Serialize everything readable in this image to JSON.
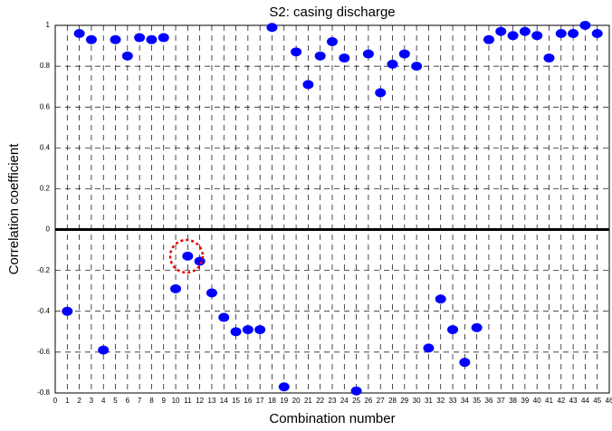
{
  "chart_data": {
    "type": "scatter",
    "title": "S2: casing discharge",
    "xlabel": "Combination number",
    "ylabel": "Correlation coefficient",
    "x": [
      1,
      2,
      3,
      4,
      5,
      6,
      7,
      8,
      9,
      10,
      11,
      12,
      13,
      14,
      15,
      16,
      17,
      18,
      19,
      20,
      21,
      22,
      23,
      24,
      25,
      26,
      27,
      28,
      29,
      30,
      31,
      32,
      33,
      34,
      35,
      36,
      37,
      38,
      39,
      40,
      41,
      42,
      43,
      44,
      45
    ],
    "values": [
      -0.4,
      0.96,
      0.93,
      -0.59,
      0.93,
      0.85,
      0.94,
      0.93,
      0.94,
      -0.29,
      -0.13,
      -0.155,
      -0.31,
      -0.43,
      -0.5,
      -0.49,
      -0.49,
      0.99,
      -0.77,
      0.87,
      0.71,
      0.85,
      0.92,
      0.84,
      -0.79,
      0.86,
      0.67,
      0.81,
      0.86,
      0.8,
      -0.58,
      -0.34,
      -0.49,
      -0.65,
      -0.48,
      0.93,
      0.97,
      0.95,
      0.97,
      0.95,
      0.84,
      0.96,
      0.96,
      1.0,
      0.96
    ],
    "color": "#0000ff",
    "xlim": [
      0,
      46
    ],
    "xticks": [
      0,
      1,
      2,
      3,
      4,
      5,
      6,
      7,
      8,
      9,
      10,
      11,
      12,
      13,
      14,
      15,
      16,
      17,
      18,
      19,
      20,
      21,
      22,
      23,
      24,
      25,
      26,
      27,
      28,
      29,
      30,
      31,
      32,
      33,
      34,
      35,
      36,
      37,
      38,
      39,
      40,
      41,
      42,
      43,
      44,
      45,
      46
    ],
    "ylim": [
      -0.8,
      1
    ],
    "yticks": [
      -0.8,
      -0.6,
      -0.4,
      -0.2,
      0,
      0.2,
      0.4,
      0.6,
      0.8,
      1
    ],
    "grid": true
  }
}
